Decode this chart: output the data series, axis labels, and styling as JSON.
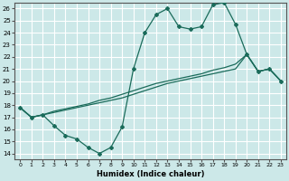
{
  "xlabel": "Humidex (Indice chaleur)",
  "bg_color": "#cce8e8",
  "grid_color": "#ffffff",
  "line_color": "#1a6b5a",
  "xlim": [
    -0.5,
    23.5
  ],
  "ylim": [
    13.5,
    26.5
  ],
  "yticks": [
    14,
    15,
    16,
    17,
    18,
    19,
    20,
    21,
    22,
    23,
    24,
    25,
    26
  ],
  "xticks": [
    0,
    1,
    2,
    3,
    4,
    5,
    6,
    7,
    8,
    9,
    10,
    11,
    12,
    13,
    14,
    15,
    16,
    17,
    18,
    19,
    20,
    21,
    22,
    23
  ],
  "line1_x": [
    0,
    1,
    2,
    3,
    4,
    5,
    6,
    7,
    8,
    9,
    10,
    11,
    12,
    13,
    14,
    15,
    16,
    17,
    18,
    19,
    20,
    21,
    22,
    23
  ],
  "line1_y": [
    17.8,
    17.0,
    17.2,
    16.3,
    15.5,
    15.2,
    14.5,
    14.0,
    14.5,
    16.2,
    21.0,
    24.0,
    25.5,
    26.0,
    24.5,
    24.3,
    24.5,
    26.3,
    26.5,
    24.7,
    22.2,
    20.8,
    21.0,
    20.0
  ],
  "line2_x": [
    0,
    1,
    2,
    3,
    4,
    5,
    6,
    7,
    8,
    9,
    10,
    11,
    12,
    13,
    14,
    15,
    16,
    17,
    18,
    19,
    20,
    21,
    22,
    23
  ],
  "line2_y": [
    17.8,
    17.0,
    17.2,
    17.4,
    17.6,
    17.8,
    18.0,
    18.2,
    18.4,
    18.6,
    18.9,
    19.2,
    19.5,
    19.8,
    20.0,
    20.2,
    20.4,
    20.6,
    20.8,
    21.0,
    22.2,
    20.8,
    21.0,
    20.0
  ],
  "line3_x": [
    0,
    1,
    2,
    3,
    4,
    5,
    6,
    7,
    8,
    9,
    10,
    11,
    12,
    13,
    14,
    15,
    16,
    17,
    18,
    19,
    20,
    21,
    22,
    23
  ],
  "line3_y": [
    17.8,
    17.0,
    17.2,
    17.5,
    17.7,
    17.9,
    18.1,
    18.4,
    18.6,
    18.9,
    19.2,
    19.5,
    19.8,
    20.0,
    20.2,
    20.4,
    20.6,
    20.9,
    21.1,
    21.4,
    22.2,
    20.8,
    21.0,
    20.0
  ]
}
